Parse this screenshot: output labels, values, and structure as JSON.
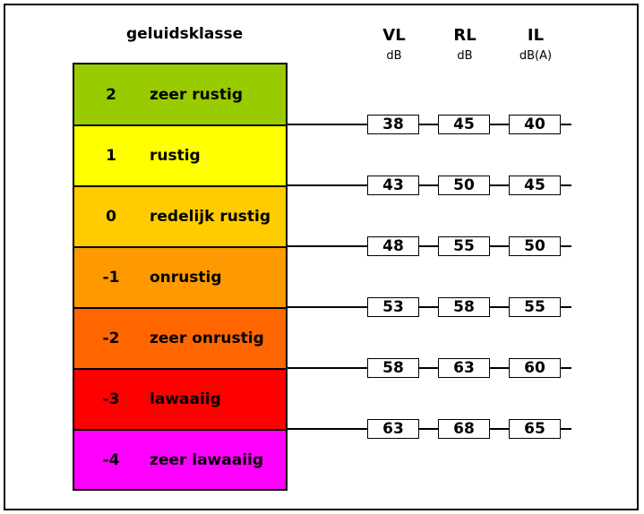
{
  "header": {
    "class_title": "geluidsklasse",
    "columns": [
      {
        "label": "VL",
        "unit": "dB"
      },
      {
        "label": "RL",
        "unit": "dB"
      },
      {
        "label": "IL",
        "unit": "dB(A)"
      }
    ]
  },
  "classes": [
    {
      "num": "2",
      "label": "zeer rustig",
      "color": "#99cc00"
    },
    {
      "num": "1",
      "label": "rustig",
      "color": "#ffff00"
    },
    {
      "num": "0",
      "label": "redelijk rustig",
      "color": "#ffcc00"
    },
    {
      "num": "-1",
      "label": "onrustig",
      "color": "#ff9900"
    },
    {
      "num": "-2",
      "label": "zeer onrustig",
      "color": "#ff6600"
    },
    {
      "num": "-3",
      "label": "lawaaiig",
      "color": "#ff0000"
    },
    {
      "num": "-4",
      "label": "zeer lawaaiig",
      "color": "#ff00ff"
    }
  ],
  "thresholds": [
    [
      "38",
      "45",
      "40"
    ],
    [
      "43",
      "50",
      "45"
    ],
    [
      "48",
      "55",
      "50"
    ],
    [
      "53",
      "58",
      "55"
    ],
    [
      "58",
      "63",
      "60"
    ],
    [
      "63",
      "68",
      "65"
    ]
  ]
}
